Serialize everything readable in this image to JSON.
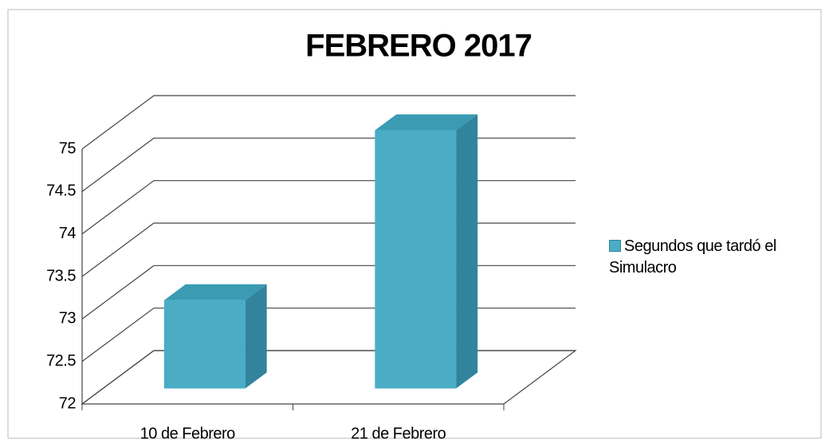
{
  "chart_data": {
    "type": "bar3d",
    "title": "FEBRERO 2017",
    "categories": [
      "10 de Febrero",
      "21 de Febrero"
    ],
    "series": [
      {
        "name": "Segundos que tardó el Simulacro",
        "color": "#4bacc6",
        "values": [
          73,
          75
        ]
      }
    ],
    "ylim": [
      72,
      75
    ],
    "yticks": [
      72,
      72.5,
      73,
      73.5,
      74,
      74.5,
      75
    ],
    "grid": true,
    "legend": "right"
  }
}
